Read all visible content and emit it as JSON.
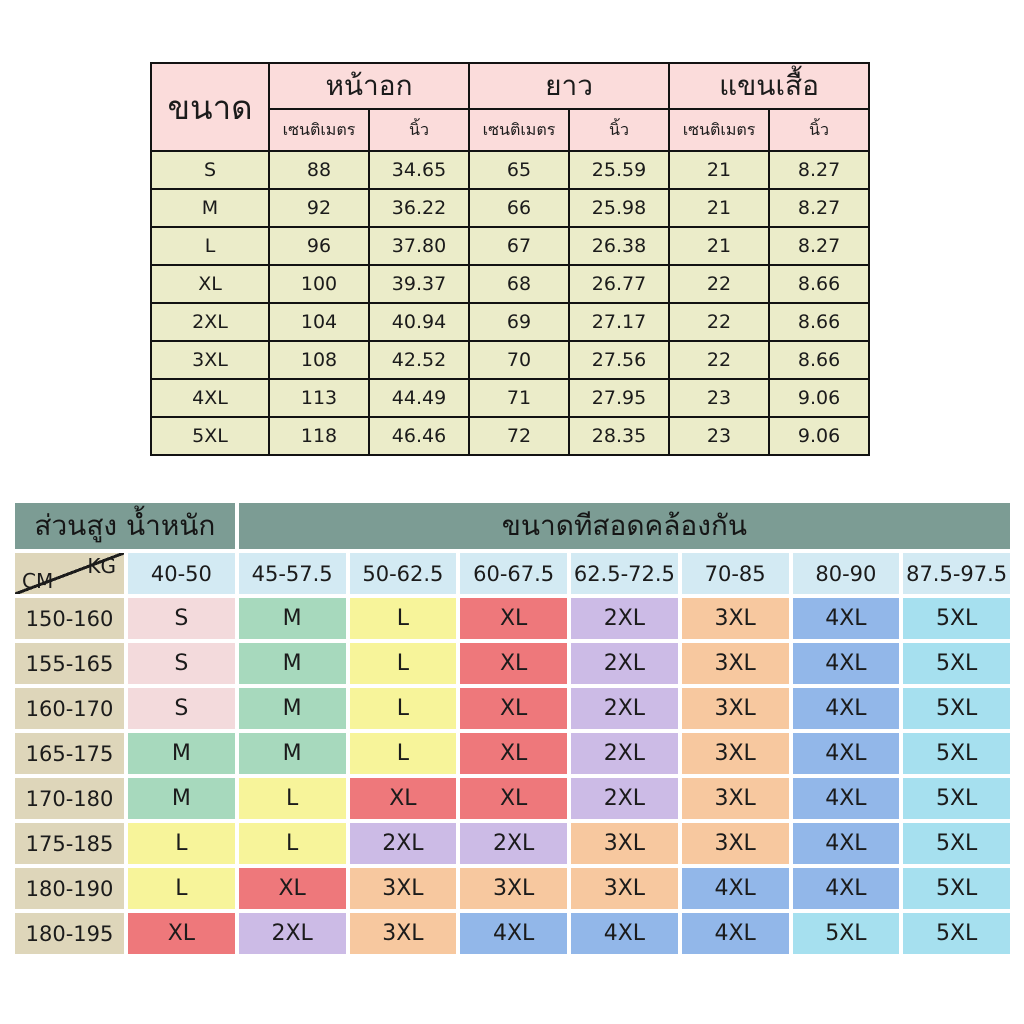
{
  "chart_data": [
    {
      "type": "table",
      "name": "garment-measurements",
      "column_groups": [
        {
          "label": "ขนาด"
        },
        {
          "label": "หน้าอก"
        },
        {
          "label": "ยาว"
        },
        {
          "label": "แขนเสื้อ"
        }
      ],
      "sub_headers": [
        "เซนติเมตร",
        "นิ้ว",
        "เซนติเมตร",
        "นิ้ว",
        "เซนติเมตร",
        "นิ้ว"
      ],
      "rows": [
        [
          "S",
          "88",
          "34.65",
          "65",
          "25.59",
          "21",
          "8.27"
        ],
        [
          "M",
          "92",
          "36.22",
          "66",
          "25.98",
          "21",
          "8.27"
        ],
        [
          "L",
          "96",
          "37.80",
          "67",
          "26.38",
          "21",
          "8.27"
        ],
        [
          "XL",
          "100",
          "39.37",
          "68",
          "26.77",
          "22",
          "8.66"
        ],
        [
          "2XL",
          "104",
          "40.94",
          "69",
          "27.17",
          "22",
          "8.66"
        ],
        [
          "3XL",
          "108",
          "42.52",
          "70",
          "27.56",
          "22",
          "8.66"
        ],
        [
          "4XL",
          "113",
          "44.49",
          "71",
          "27.95",
          "23",
          "9.06"
        ],
        [
          "5XL",
          "118",
          "46.46",
          "72",
          "28.35",
          "23",
          "9.06"
        ]
      ],
      "colors": {
        "header_bg": "#fbdcdb",
        "body_bg": "#ebecc9",
        "border": "#121212"
      }
    },
    {
      "type": "table",
      "name": "height-weight-size-matching",
      "title_left": "ส่วนสูง น้ำหนัก",
      "title_right": "ขนาดทีสอดคล้องกัน",
      "corner_top_right": "KG",
      "corner_bottom_left": "CM",
      "weight_columns": [
        "40-50",
        "45-57.5",
        "50-62.5",
        "60-67.5",
        "62.5-72.5",
        "70-85",
        "80-90",
        "87.5-97.5"
      ],
      "rows": [
        {
          "height": "150-160",
          "sizes": [
            "S",
            "M",
            "L",
            "XL",
            "2XL",
            "3XL",
            "4XL",
            "5XL"
          ]
        },
        {
          "height": "155-165",
          "sizes": [
            "S",
            "M",
            "L",
            "XL",
            "2XL",
            "3XL",
            "4XL",
            "5XL"
          ]
        },
        {
          "height": "160-170",
          "sizes": [
            "S",
            "M",
            "L",
            "XL",
            "2XL",
            "3XL",
            "4XL",
            "5XL"
          ]
        },
        {
          "height": "165-175",
          "sizes": [
            "M",
            "M",
            "L",
            "XL",
            "2XL",
            "3XL",
            "4XL",
            "5XL"
          ]
        },
        {
          "height": "170-180",
          "sizes": [
            "M",
            "L",
            "XL",
            "XL",
            "2XL",
            "3XL",
            "4XL",
            "5XL"
          ]
        },
        {
          "height": "175-185",
          "sizes": [
            "L",
            "L",
            "2XL",
            "2XL",
            "3XL",
            "3XL",
            "4XL",
            "5XL"
          ]
        },
        {
          "height": "180-190",
          "sizes": [
            "L",
            "XL",
            "3XL",
            "3XL",
            "3XL",
            "4XL",
            "4XL",
            "5XL"
          ]
        },
        {
          "height": "180-195",
          "sizes": [
            "XL",
            "2XL",
            "3XL",
            "4XL",
            "4XL",
            "4XL",
            "5XL",
            "5XL"
          ]
        }
      ],
      "size_colors": {
        "S": "#f3dadc",
        "M": "#a7d9bd",
        "L": "#f7f49a",
        "XL": "#ee787b",
        "2XL": "#ccbbe6",
        "3XL": "#f7c89f",
        "4XL": "#92b7e9",
        "5XL": "#a6e0ef"
      },
      "colors": {
        "title_bg": "#7c9c94",
        "corner_bg": "#ded6ba",
        "height_col_bg": "#ded6ba",
        "weight_header_bg": "#d3eaf3",
        "diagonal_line": "#1c1c1c",
        "gap": "#ffffff"
      }
    }
  ]
}
